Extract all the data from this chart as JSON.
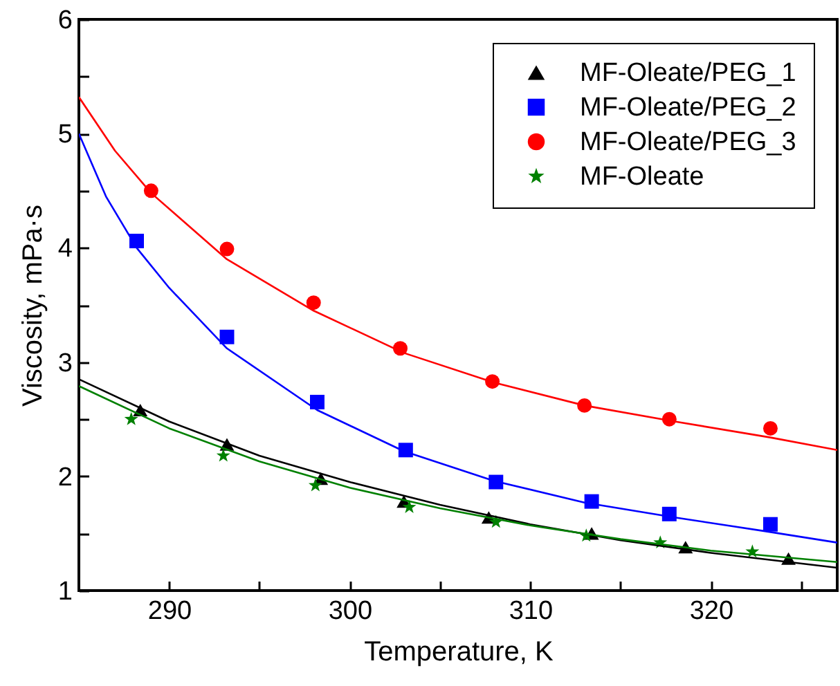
{
  "chart_data": {
    "type": "scatter",
    "xlabel": "Temperature, K",
    "ylabel": "Viscosity, mPa·s",
    "xlim": [
      285,
      327
    ],
    "ylim": [
      1,
      6
    ],
    "xticks": [
      290,
      {
        "value": 295,
        "label": null
      },
      300,
      {
        "value": 305,
        "label": null
      },
      310,
      {
        "value": 315,
        "label": null
      },
      320,
      {
        "value": 325,
        "label": null
      }
    ],
    "yticks": [
      1,
      {
        "value": 1.5,
        "label": null
      },
      2,
      {
        "value": 2.5,
        "label": null
      },
      3,
      {
        "value": 3.5,
        "label": null
      },
      4,
      {
        "value": 4.5,
        "label": null
      },
      5,
      {
        "value": 5.5,
        "label": null
      },
      6
    ],
    "grid": false,
    "legend": "top right",
    "series": [
      {
        "name": "MF-Oleate/PEG_1",
        "color": "#000000",
        "marker": "triangle",
        "x": [
          288.4,
          293.2,
          298.4,
          303.0,
          307.7,
          313.4,
          318.6,
          324.3
        ],
        "values": [
          2.58,
          2.28,
          1.98,
          1.78,
          1.64,
          1.5,
          1.38,
          1.28
        ]
      },
      {
        "name": "MF-Oleate/PEG_2",
        "color": "#0000ff",
        "marker": "square",
        "x": [
          288.2,
          293.2,
          298.2,
          303.1,
          308.1,
          313.4,
          317.7,
          323.3
        ],
        "values": [
          4.06,
          3.22,
          2.65,
          2.23,
          1.95,
          1.78,
          1.67,
          1.58
        ]
      },
      {
        "name": "MF-Oleate/PEG_3",
        "color": "#ff0000",
        "marker": "circle",
        "x": [
          289.0,
          293.2,
          298.0,
          302.8,
          307.9,
          313.0,
          317.7,
          323.3
        ],
        "values": [
          4.5,
          3.99,
          3.52,
          3.12,
          2.83,
          2.62,
          2.5,
          2.42
        ]
      },
      {
        "name": "MF-Oleate",
        "color": "#008000",
        "marker": "star",
        "x": [
          287.9,
          293.0,
          298.1,
          303.3,
          308.1,
          313.1,
          317.2,
          322.3
        ],
        "values": [
          2.5,
          2.18,
          1.92,
          1.73,
          1.6,
          1.48,
          1.42,
          1.34
        ]
      },
      {
        "type": "line",
        "color": "#000000",
        "x": [
          285,
          290,
          295,
          300,
          305,
          310,
          315,
          320,
          327
        ],
        "values": [
          2.85,
          2.48,
          2.18,
          1.95,
          1.75,
          1.58,
          1.44,
          1.33,
          1.2
        ]
      },
      {
        "type": "line",
        "color": "#0000ff",
        "x": [
          285,
          286.5,
          288.2,
          290,
          293.2,
          298.2,
          303,
          308,
          313,
          318,
          323,
          327
        ],
        "values": [
          5.0,
          4.45,
          4.0,
          3.65,
          3.12,
          2.58,
          2.22,
          1.96,
          1.77,
          1.64,
          1.52,
          1.42
        ]
      },
      {
        "type": "line",
        "color": "#ff0000",
        "x": [
          285,
          287,
          289,
          293.2,
          298,
          303,
          308,
          313,
          318,
          323.3,
          327
        ],
        "values": [
          5.32,
          4.85,
          4.48,
          3.9,
          3.45,
          3.08,
          2.82,
          2.62,
          2.48,
          2.34,
          2.23
        ]
      },
      {
        "type": "line",
        "color": "#008000",
        "x": [
          285,
          290,
          295,
          300,
          305,
          310,
          315,
          320,
          327
        ],
        "values": [
          2.79,
          2.42,
          2.13,
          1.9,
          1.72,
          1.57,
          1.45,
          1.35,
          1.25
        ]
      }
    ]
  }
}
